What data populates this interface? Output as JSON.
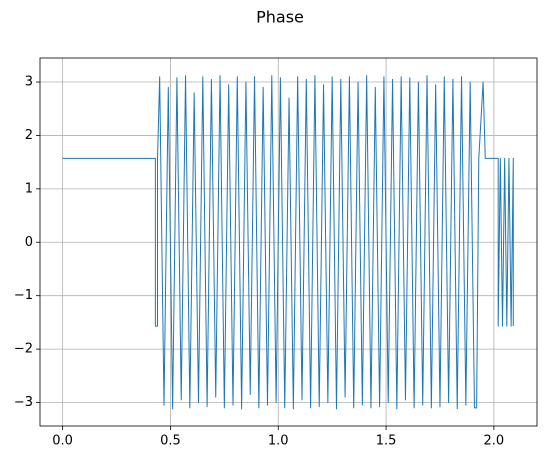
{
  "chart_data": {
    "type": "line",
    "title": "Phase",
    "color": "#1f77b4",
    "grid": true,
    "xlim": [
      -0.105,
      2.2
    ],
    "ylim": [
      -3.44,
      3.45
    ],
    "xticks": [
      {
        "value": 0,
        "label": "0.0"
      },
      0.5,
      {
        "value": 1,
        "label": "1.0"
      },
      1.5,
      {
        "value": 2,
        "label": "2.0"
      }
    ],
    "yticks": [
      {
        "value": -3,
        "label": "−3"
      },
      {
        "value": -2,
        "label": "−2"
      },
      {
        "value": -1,
        "label": "−1"
      },
      0,
      1,
      2,
      3
    ],
    "x": [
      0,
      0.43,
      0.43,
      0.44,
      0.44,
      0.45,
      0.47,
      0.49,
      0.51,
      0.53,
      0.55,
      0.57,
      0.59,
      0.61,
      0.63,
      0.65,
      0.67,
      0.69,
      0.71,
      0.73,
      0.75,
      0.77,
      0.79,
      0.81,
      0.83,
      0.85,
      0.87,
      0.89,
      0.91,
      0.93,
      0.95,
      0.97,
      0.99,
      1.01,
      1.03,
      1.05,
      1.07,
      1.09,
      1.11,
      1.13,
      1.15,
      1.17,
      1.19,
      1.21,
      1.23,
      1.25,
      1.27,
      1.29,
      1.31,
      1.33,
      1.35,
      1.37,
      1.39,
      1.41,
      1.43,
      1.45,
      1.47,
      1.49,
      1.51,
      1.53,
      1.55,
      1.57,
      1.59,
      1.61,
      1.63,
      1.65,
      1.67,
      1.69,
      1.71,
      1.73,
      1.75,
      1.77,
      1.79,
      1.81,
      1.83,
      1.85,
      1.87,
      1.89,
      1.91,
      1.92,
      1.93,
      1.95,
      1.96,
      2.02,
      2.02,
      2.03,
      2.04,
      2.05,
      2.06,
      2.07,
      2.08,
      2.09,
      2.09
    ],
    "values": [
      1.57,
      1.57,
      -1.57,
      -1.57,
      1.57,
      3.1,
      -3.05,
      2.9,
      -3.12,
      3.08,
      -2.95,
      3.12,
      -3.1,
      2.8,
      -3.0,
      3.1,
      -3.08,
      3.05,
      -2.9,
      3.12,
      -3.1,
      2.95,
      -3.05,
      3.1,
      -3.12,
      3.0,
      -2.85,
      3.1,
      -3.1,
      2.9,
      -3.05,
      3.12,
      -3.0,
      3.08,
      -3.1,
      2.7,
      -3.12,
      3.1,
      -2.95,
      3.05,
      -3.1,
      3.12,
      -3.08,
      2.95,
      -3.0,
      3.1,
      -3.12,
      3.05,
      -2.9,
      3.1,
      -3.1,
      3.0,
      -3.05,
      3.12,
      -3.1,
      2.9,
      -3.08,
      3.1,
      -3.0,
      3.05,
      -3.12,
      3.1,
      -2.95,
      3.08,
      -3.1,
      3.0,
      -3.05,
      3.12,
      -3.1,
      2.95,
      -3.08,
      3.1,
      -3.0,
      3.05,
      -3.12,
      3.1,
      -3.05,
      3.0,
      -3.1,
      -3.1,
      1.57,
      3.0,
      1.57,
      1.57,
      -1.57,
      1.57,
      -1.57,
      1.57,
      -1.57,
      1.57,
      -1.57,
      1.57,
      -1.57
    ]
  }
}
